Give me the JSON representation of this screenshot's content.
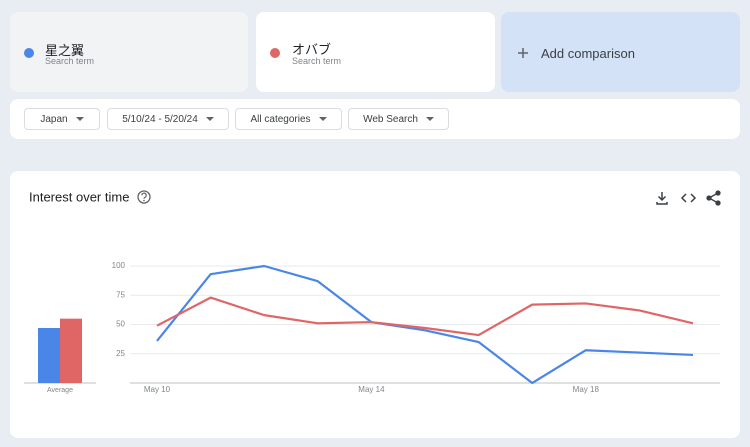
{
  "search_terms": [
    {
      "term": "星之翼",
      "subtitle": "Search term"
    },
    {
      "term": "オバブ",
      "subtitle": "Search term"
    }
  ],
  "add_comparison": "Add comparison",
  "filters": [
    "Japan",
    "5/10/24 - 5/20/24",
    "All categories",
    "Web Search"
  ],
  "chart_data": {
    "type": "line",
    "title": "Interest over time",
    "categories": [
      "May 10",
      null,
      null,
      null,
      "May 14",
      null,
      null,
      null,
      "May 18",
      null,
      null
    ],
    "series": [
      {
        "name": "星之翼",
        "color": "#4a86e8",
        "values": [
          36,
          93,
          100,
          87,
          52,
          45,
          35,
          0,
          28,
          26,
          24
        ]
      },
      {
        "name": "オバブ",
        "color": "#e06666",
        "values": [
          49,
          73,
          58,
          51,
          52,
          47,
          41,
          67,
          68,
          62,
          51
        ]
      }
    ],
    "averages": {
      "label": "Average",
      "values": [
        47,
        55
      ]
    },
    "ylim": [
      0,
      100
    ],
    "yticks": [
      25,
      50,
      75,
      100
    ],
    "grid": true
  }
}
